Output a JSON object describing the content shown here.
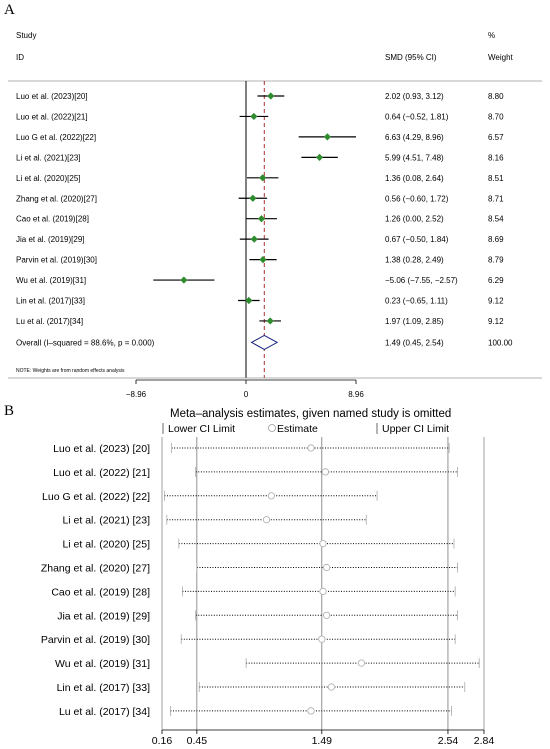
{
  "panel_a": {
    "label": "A",
    "col_study": "Study",
    "col_id": "ID",
    "col_smd": "SMD (95% CI)",
    "col_pct": "%",
    "col_weight": "Weight",
    "note": "NOTE: Weights are from random effects analysis"
  },
  "panel_b": {
    "label": "B",
    "title": "Meta–analysis estimates, given named study is omitted",
    "legend": {
      "lower": "Lower CI Limit",
      "estimate": "Estimate",
      "upper": "Upper CI Limit"
    }
  },
  "colors": {
    "study_marker": "#2e8b2e",
    "pooled_diamond": "#1a237e",
    "overall_line": "#b03030"
  },
  "chart_data": [
    {
      "type": "forest",
      "xlim": [
        -8.96,
        8.96
      ],
      "x_ticks": [
        "−8.96",
        "0",
        "8.96"
      ],
      "overall_effect_line": 1.49,
      "rows": [
        {
          "study": "Luo et al. (2023)[20]",
          "smd": 2.02,
          "lo": 0.93,
          "hi": 3.12,
          "ci_text": "2.02 (0.93, 3.12)",
          "weight": "8.80"
        },
        {
          "study": "Luo et al. (2022)[21]",
          "smd": 0.64,
          "lo": -0.52,
          "hi": 1.81,
          "ci_text": "0.64 (−0.52, 1.81)",
          "weight": "8.70"
        },
        {
          "study": "Luo G et al. (2022)[22]",
          "smd": 6.63,
          "lo": 4.29,
          "hi": 8.96,
          "ci_text": "6.63 (4.29, 8.96)",
          "weight": "6.57"
        },
        {
          "study": "Li et al. (2021)[23]",
          "smd": 5.99,
          "lo": 4.51,
          "hi": 7.48,
          "ci_text": "5.99 (4.51, 7.48)",
          "weight": "8.16"
        },
        {
          "study": "Li et al. (2020)[25]",
          "smd": 1.36,
          "lo": 0.08,
          "hi": 2.64,
          "ci_text": "1.36 (0.08, 2.64)",
          "weight": "8.51"
        },
        {
          "study": "Zhang et al. (2020)[27]",
          "smd": 0.56,
          "lo": -0.6,
          "hi": 1.72,
          "ci_text": "0.56 (−0.60, 1.72)",
          "weight": "8.71"
        },
        {
          "study": "Cao et al. (2019)[28]",
          "smd": 1.26,
          "lo": 0.0,
          "hi": 2.52,
          "ci_text": "1.26 (0.00, 2.52)",
          "weight": "8.54"
        },
        {
          "study": "Jia et al. (2019)[29]",
          "smd": 0.67,
          "lo": -0.5,
          "hi": 1.84,
          "ci_text": "0.67 (−0.50, 1.84)",
          "weight": "8.69"
        },
        {
          "study": "Parvin et al. (2019)[30]",
          "smd": 1.38,
          "lo": 0.28,
          "hi": 2.49,
          "ci_text": "1.38 (0.28, 2.49)",
          "weight": "8.79"
        },
        {
          "study": "Wu et al. (2019)[31]",
          "smd": -5.06,
          "lo": -7.55,
          "hi": -2.57,
          "ci_text": "−5.06 (−7.55, −2.57)",
          "weight": "6.29"
        },
        {
          "study": "Lin et al. (2017)[33]",
          "smd": 0.23,
          "lo": -0.65,
          "hi": 1.11,
          "ci_text": "0.23 (−0.65, 1.11)",
          "weight": "9.12"
        },
        {
          "study": "Lu et al. (2017)[34]",
          "smd": 1.97,
          "lo": 1.09,
          "hi": 2.85,
          "ci_text": "1.97 (1.09, 2.85)",
          "weight": "9.12"
        }
      ],
      "overall": {
        "label": "Overall  (I–squared = 88.6%, p = 0.000)",
        "smd": 1.49,
        "lo": 0.45,
        "hi": 2.54,
        "ci_text": "1.49 (0.45, 2.54)",
        "weight": "100.00"
      }
    },
    {
      "type": "sensitivity",
      "xlim": [
        0.16,
        2.84
      ],
      "x_ticks": [
        "0.16",
        "0.45",
        "1.49",
        "2.54",
        "2.84"
      ],
      "reference_lines": [
        0.45,
        1.49,
        2.54
      ],
      "rows": [
        {
          "study": "Luo et al. (2023) [20]",
          "lower": 0.24,
          "estimate": 1.4,
          "upper": 2.55
        },
        {
          "study": "Luo et al. (2022) [21]",
          "lower": 0.44,
          "estimate": 1.52,
          "upper": 2.62
        },
        {
          "study": "Luo G et al. (2022) [22]",
          "lower": 0.18,
          "estimate": 1.07,
          "upper": 1.95
        },
        {
          "study": "Li et al. (2021) [23]",
          "lower": 0.2,
          "estimate": 1.03,
          "upper": 1.86
        },
        {
          "study": "Li et al. (2020) [25]",
          "lower": 0.3,
          "estimate": 1.5,
          "upper": 2.59
        },
        {
          "study": "Zhang et al. (2020) [27]",
          "lower": 0.45,
          "estimate": 1.53,
          "upper": 2.62
        },
        {
          "study": "Cao et al. (2019) [28]",
          "lower": 0.33,
          "estimate": 1.5,
          "upper": 2.6
        },
        {
          "study": "Jia et al. (2019) [29]",
          "lower": 0.44,
          "estimate": 1.53,
          "upper": 2.62
        },
        {
          "study": "Parvin et al. (2019) [30]",
          "lower": 0.32,
          "estimate": 1.49,
          "upper": 2.6
        },
        {
          "study": "Wu et al. (2019) [31]",
          "lower": 0.86,
          "estimate": 1.82,
          "upper": 2.8
        },
        {
          "study": "Lin et al. (2017) [33]",
          "lower": 0.47,
          "estimate": 1.57,
          "upper": 2.68
        },
        {
          "study": "Lu et al. (2017) [34]",
          "lower": 0.23,
          "estimate": 1.4,
          "upper": 2.57
        }
      ]
    }
  ]
}
